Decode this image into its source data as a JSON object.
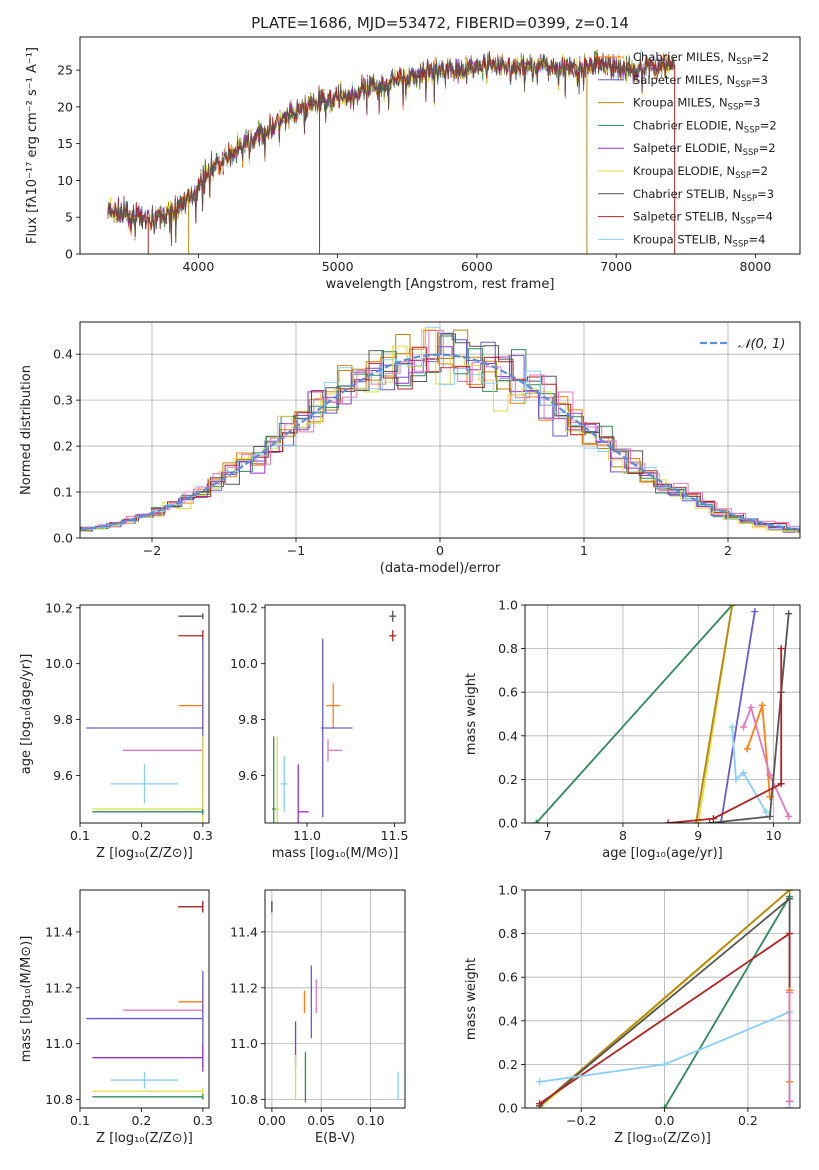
{
  "figure_title": "PLATE=1686, MJD=53472, FIBERID=0399, z=0.14",
  "colors": {
    "chabrier_miles": "#ff7f0e",
    "salpeter_miles": "#6a5acd",
    "kroupa_miles": "#b8860b",
    "chabrier_elodie": "#2e8b57",
    "salpeter_elodie": "#9932cc",
    "kroupa_elodie": "#dddd44",
    "chabrier_stelib": "#555555",
    "salpeter_stelib": "#b22222",
    "kroupa_stelib": "#87cefa",
    "normal": "#5b8fd8"
  },
  "chart_data": [
    {
      "id": "spectrum",
      "type": "line",
      "title": "PLATE=1686, MJD=53472, FIBERID=0399, z=0.14",
      "xlabel": "wavelength [Angstrom, rest frame]",
      "ylabel": "Flux [fλ10⁻¹⁷ erg cm⁻² s⁻¹ A⁻¹]",
      "xlim": [
        3150,
        8320
      ],
      "ylim": [
        0,
        29.5
      ],
      "xticks": [
        4000,
        5000,
        6000,
        7000,
        8000
      ],
      "yticks": [
        0,
        5,
        10,
        15,
        20,
        25
      ],
      "grid": false,
      "legend": "upper-right",
      "continuum": [
        [
          3350,
          5.8
        ],
        [
          3500,
          5.2
        ],
        [
          3650,
          4.6
        ],
        [
          3800,
          5.6
        ],
        [
          3950,
          8.0
        ],
        [
          4100,
          11.8
        ],
        [
          4300,
          14.5
        ],
        [
          4500,
          16.8
        ],
        [
          4700,
          19.3
        ],
        [
          4900,
          21.0
        ],
        [
          5100,
          21.6
        ],
        [
          5300,
          23.0
        ],
        [
          5500,
          24.0
        ],
        [
          5700,
          25.0
        ],
        [
          5900,
          25.2
        ],
        [
          6100,
          25.8
        ],
        [
          6300,
          25.5
        ],
        [
          6500,
          25.7
        ],
        [
          6700,
          25.2
        ],
        [
          6900,
          26.0
        ],
        [
          7100,
          25.0
        ],
        [
          7300,
          25.5
        ],
        [
          7420,
          25.7
        ]
      ],
      "series": [
        {
          "name": "Chabrier MILES, N",
          "sub": "SSP",
          "suffix": "=2",
          "color": "#ff7f0e"
        },
        {
          "name": "Salpeter MILES, N",
          "sub": "SSP",
          "suffix": "=3",
          "color": "#6a5acd"
        },
        {
          "name": "Kroupa MILES, N",
          "sub": "SSP",
          "suffix": "=3",
          "color": "#b8860b"
        },
        {
          "name": "Chabrier ELODIE, N",
          "sub": "SSP",
          "suffix": "=2",
          "color": "#2e8b57"
        },
        {
          "name": "Salpeter ELODIE, N",
          "sub": "SSP",
          "suffix": "=2",
          "color": "#9932cc"
        },
        {
          "name": "Kroupa ELODIE, N",
          "sub": "SSP",
          "suffix": "=2",
          "color": "#dddd44"
        },
        {
          "name": "Chabrier STELIB, N",
          "sub": "SSP",
          "suffix": "=3",
          "color": "#555555"
        },
        {
          "name": "Salpeter STELIB, N",
          "sub": "SSP",
          "suffix": "=4",
          "color": "#b22222"
        },
        {
          "name": "Kroupa STELIB, N",
          "sub": "SSP",
          "suffix": "=4",
          "color": "#87cefa"
        }
      ],
      "dips": [
        {
          "x": 3640,
          "y": 0,
          "color": "#b22222"
        },
        {
          "x": 3930,
          "y": 0,
          "color": "#b8860b"
        },
        {
          "x": 4870,
          "y": 0,
          "color": "#555555"
        },
        {
          "x": 6790,
          "y": 0,
          "color": "#b8860b"
        },
        {
          "x": 7420,
          "y": 0,
          "color": "#b22222"
        }
      ]
    },
    {
      "id": "residuals",
      "type": "step",
      "xlabel": "(data-model)/error",
      "ylabel": "Normed distribution",
      "xlim": [
        -2.5,
        2.5
      ],
      "ylim": [
        0,
        0.47
      ],
      "xticks": [
        -2,
        -1,
        0,
        1,
        2
      ],
      "yticks": [
        0.0,
        0.1,
        0.2,
        0.3,
        0.4
      ],
      "grid": true,
      "legend": "upper-right",
      "legend_label": "𝒩(0, 1)",
      "bin_width": 0.1
    },
    {
      "id": "age_vs_Z",
      "type": "errorbar",
      "xlabel": "Z [log₁₀(Z/Z⊙)]",
      "ylabel": "age  [log₁₀(age/yr)]",
      "xlim": [
        0.1,
        0.31
      ],
      "ylim": [
        9.43,
        10.21
      ],
      "xticks": [
        0.1,
        0.2,
        0.3
      ],
      "yticks": [
        9.6,
        9.8,
        10.0,
        10.2
      ],
      "grid": false,
      "points": [
        {
          "x": 0.3,
          "y": 10.17,
          "xerr": [
            0.04,
            0.0
          ],
          "yerr": 0.01,
          "color": "#555555"
        },
        {
          "x": 0.3,
          "y": 10.1,
          "xerr": [
            0.04,
            0.0
          ],
          "yerr": 0.02,
          "color": "#b22222"
        },
        {
          "x": 0.3,
          "y": 9.85,
          "xerr": [
            0.04,
            0.0
          ],
          "yerr": 0.08,
          "color": "#ff7f0e"
        },
        {
          "x": 0.3,
          "y": 9.77,
          "xerr": [
            0.19,
            0.0
          ],
          "yerr": 0.32,
          "color": "#6a5acd"
        },
        {
          "x": 0.3,
          "y": 9.69,
          "xerr": [
            0.13,
            0.0
          ],
          "yerr": 0.05,
          "color": "#e377c2"
        },
        {
          "x": 0.205,
          "y": 9.57,
          "xerr": [
            0.055,
            0.055
          ],
          "yerr": 0.07,
          "color": "#87cefa"
        },
        {
          "x": 0.3,
          "y": 9.48,
          "xerr": [
            0.18,
            0.0
          ],
          "yerr": 0.26,
          "color": "#dddd44"
        },
        {
          "x": 0.3,
          "y": 9.47,
          "xerr": [
            0.18,
            0.0
          ],
          "yerr": 0.01,
          "color": "#2e8b57"
        }
      ]
    },
    {
      "id": "age_vs_mass",
      "type": "errorbar",
      "xlabel": "mass [log₁₀(M/M⊙)]",
      "ylabel": "",
      "xlim": [
        10.76,
        11.56
      ],
      "ylim": [
        9.43,
        10.21
      ],
      "xticks": [
        11.0,
        11.5
      ],
      "yticks": [
        9.6,
        9.8,
        10.0,
        10.2
      ],
      "grid": false,
      "points": [
        {
          "x": 11.49,
          "y": 10.17,
          "xerr": [
            0.02,
            0.02
          ],
          "yerr": 0.02,
          "color": "#555555"
        },
        {
          "x": 11.49,
          "y": 10.1,
          "xerr": [
            0.02,
            0.02
          ],
          "yerr": 0.02,
          "color": "#b22222"
        },
        {
          "x": 11.15,
          "y": 9.85,
          "xerr": [
            0.04,
            0.04
          ],
          "yerr": 0.08,
          "color": "#ff7f0e"
        },
        {
          "x": 11.09,
          "y": 9.77,
          "xerr": [
            0.01,
            0.17
          ],
          "yerr": 0.32,
          "color": "#6a5acd"
        },
        {
          "x": 11.12,
          "y": 9.69,
          "xerr": [
            0.0,
            0.08
          ],
          "yerr": 0.04,
          "color": "#e377c2"
        },
        {
          "x": 10.87,
          "y": 9.57,
          "xerr": [
            0.02,
            0.02
          ],
          "yerr": 0.1,
          "color": "#87cefa"
        },
        {
          "x": 10.83,
          "y": 9.48,
          "xerr": [
            0.01,
            0.01
          ],
          "yerr": 0.26,
          "color": "#dddd44"
        },
        {
          "x": 10.95,
          "y": 9.47,
          "xerr": [
            0.0,
            0.06
          ],
          "yerr": 0.17,
          "color": "#9932cc"
        },
        {
          "x": 10.81,
          "y": 9.48,
          "xerr": [
            0.01,
            0.01
          ],
          "yerr": 0.26,
          "color": "#2e8b57"
        }
      ]
    },
    {
      "id": "weight_vs_age",
      "type": "line",
      "xlabel": "age  [log₁₀(age/yr)]",
      "ylabel": "mass weight",
      "xlim": [
        6.7,
        10.35
      ],
      "ylim": [
        0,
        1
      ],
      "xticks": [
        7,
        8,
        9,
        10
      ],
      "yticks": [
        0.0,
        0.2,
        0.4,
        0.6,
        0.8,
        1.0
      ],
      "grid": true,
      "series": [
        {
          "color": "#2e8b57",
          "x": [
            6.85,
            9.45
          ],
          "y": [
            0.0,
            1.0
          ]
        },
        {
          "color": "#dddd44",
          "x": [
            9.0,
            9.45
          ],
          "y": [
            0.0,
            1.0
          ]
        },
        {
          "color": "#b8860b",
          "x": [
            8.97,
            9.45
          ],
          "y": [
            0.0,
            1.0
          ]
        },
        {
          "color": "#6a5acd",
          "x": [
            9.3,
            9.75
          ],
          "y": [
            0.0,
            0.97
          ]
        },
        {
          "color": "#87cefa",
          "x": [
            9.45,
            9.5,
            9.6,
            9.9
          ],
          "y": [
            0.44,
            0.2,
            0.23,
            0.05
          ]
        },
        {
          "color": "#ff7f0e",
          "x": [
            9.65,
            9.85,
            9.95
          ],
          "y": [
            0.34,
            0.54,
            0.12
          ]
        },
        {
          "color": "#e377c2",
          "x": [
            9.6,
            9.7,
            9.95,
            10.2
          ],
          "y": [
            0.44,
            0.53,
            0.22,
            0.03
          ]
        },
        {
          "color": "#555555",
          "x": [
            9.15,
            9.95,
            10.1,
            10.2
          ],
          "y": [
            0.0,
            0.03,
            0.6,
            0.96
          ]
        },
        {
          "color": "#b22222",
          "x": [
            8.6,
            9.2,
            10.1,
            10.1
          ],
          "y": [
            0.0,
            0.02,
            0.18,
            0.8
          ]
        }
      ]
    },
    {
      "id": "mass_vs_Z",
      "type": "errorbar",
      "xlabel": "Z [log₁₀(Z/Z⊙)]",
      "ylabel": "mass [log₁₀(M/M⊙)]",
      "xlim": [
        0.1,
        0.31
      ],
      "ylim": [
        10.77,
        11.55
      ],
      "xticks": [
        0.1,
        0.2,
        0.3
      ],
      "yticks": [
        10.8,
        11.0,
        11.2,
        11.4
      ],
      "grid": false,
      "points": [
        {
          "x": 0.3,
          "y": 11.49,
          "xerr": [
            0.04,
            0.0
          ],
          "yerr": 0.02,
          "color": "#555555"
        },
        {
          "x": 0.3,
          "y": 11.49,
          "xerr": [
            0.04,
            0.0
          ],
          "yerr": 0.02,
          "color": "#b22222"
        },
        {
          "x": 0.3,
          "y": 11.15,
          "xerr": [
            0.04,
            0.0
          ],
          "yerr": 0.04,
          "color": "#ff7f0e"
        },
        {
          "x": 0.3,
          "y": 11.12,
          "xerr": [
            0.13,
            0.0
          ],
          "yerr": 0.02,
          "color": "#e377c2"
        },
        {
          "x": 0.3,
          "y": 11.09,
          "xerr": [
            0.19,
            0.0
          ],
          "yerr": 0.17,
          "color": "#6a5acd"
        },
        {
          "x": 0.3,
          "y": 10.95,
          "xerr": [
            0.18,
            0.0
          ],
          "yerr": 0.05,
          "color": "#9932cc"
        },
        {
          "x": 0.205,
          "y": 10.87,
          "xerr": [
            0.055,
            0.055
          ],
          "yerr": 0.03,
          "color": "#87cefa"
        },
        {
          "x": 0.3,
          "y": 10.83,
          "xerr": [
            0.18,
            0.0
          ],
          "yerr": 0.01,
          "color": "#dddd44"
        },
        {
          "x": 0.3,
          "y": 10.81,
          "xerr": [
            0.18,
            0.0
          ],
          "yerr": 0.01,
          "color": "#2e8b57"
        }
      ]
    },
    {
      "id": "mass_vs_EBV",
      "type": "errorbar",
      "xlabel": "E(B-V)",
      "ylabel": "",
      "xlim": [
        -0.007,
        0.135
      ],
      "ylim": [
        10.77,
        11.55
      ],
      "xticks": [
        0.0,
        0.05,
        0.1
      ],
      "yticks": [
        10.8,
        11.0,
        11.2,
        11.4
      ],
      "grid": true,
      "points": [
        {
          "x": 0.0,
          "y": 11.49,
          "xerr": [
            0,
            0
          ],
          "yerr": 0.02,
          "color": "#b22222"
        },
        {
          "x": 0.0,
          "y": 11.49,
          "xerr": [
            0,
            0
          ],
          "yerr": 0.02,
          "color": "#555555"
        },
        {
          "x": 0.033,
          "y": 11.15,
          "xerr": [
            0,
            0
          ],
          "yerr": 0.04,
          "color": "#ff7f0e"
        },
        {
          "x": 0.045,
          "y": 11.17,
          "xerr": [
            0,
            0
          ],
          "yerr": 0.06,
          "color": "#e377c2"
        },
        {
          "x": 0.04,
          "y": 11.15,
          "xerr": [
            0,
            0
          ],
          "yerr": 0.13,
          "color": "#6a5acd"
        },
        {
          "x": 0.024,
          "y": 11.0,
          "xerr": [
            0,
            0
          ],
          "yerr": 0.08,
          "color": "#9932cc"
        },
        {
          "x": 0.024,
          "y": 10.88,
          "xerr": [
            0,
            0
          ],
          "yerr": 0.08,
          "color": "#dddd44"
        },
        {
          "x": 0.034,
          "y": 10.88,
          "xerr": [
            0,
            0
          ],
          "yerr": 0.09,
          "color": "#2e8b57"
        },
        {
          "x": 0.128,
          "y": 10.85,
          "xerr": [
            0,
            0
          ],
          "yerr": 0.05,
          "color": "#87cefa"
        }
      ]
    },
    {
      "id": "weight_vs_Z",
      "type": "line",
      "xlabel": "Z [log₁₀(Z/Z⊙)]",
      "ylabel": "mass weight",
      "xlim": [
        -0.335,
        0.325
      ],
      "ylim": [
        0,
        1
      ],
      "xticks": [
        -0.2,
        0.0,
        0.2
      ],
      "yticks": [
        0.0,
        0.2,
        0.4,
        0.6,
        0.8,
        1.0
      ],
      "grid": true,
      "series": [
        {
          "color": "#2e8b57",
          "x": [
            0.0,
            0.3
          ],
          "y": [
            0.0,
            0.97
          ]
        },
        {
          "color": "#dddd44",
          "x": [
            -0.3,
            0.3
          ],
          "y": [
            0.0,
            1.0
          ]
        },
        {
          "color": "#b8860b",
          "x": [
            -0.3,
            0.3
          ],
          "y": [
            0.01,
            1.0
          ]
        },
        {
          "color": "#555555",
          "x": [
            -0.3,
            0.3,
            0.3
          ],
          "y": [
            0.01,
            0.96,
            0.03
          ]
        },
        {
          "color": "#b22222",
          "x": [
            -0.3,
            0.3,
            0.3
          ],
          "y": [
            0.02,
            0.8,
            0.0
          ]
        },
        {
          "color": "#87cefa",
          "x": [
            -0.3,
            0.0,
            0.3,
            0.3
          ],
          "y": [
            0.12,
            0.2,
            0.44,
            0.0
          ]
        },
        {
          "color": "#ff7f0e",
          "x": [
            0.3,
            0.3
          ],
          "y": [
            0.12,
            0.54
          ]
        },
        {
          "color": "#e377c2",
          "x": [
            0.3,
            0.3
          ],
          "y": [
            0.03,
            0.53
          ]
        }
      ]
    }
  ]
}
